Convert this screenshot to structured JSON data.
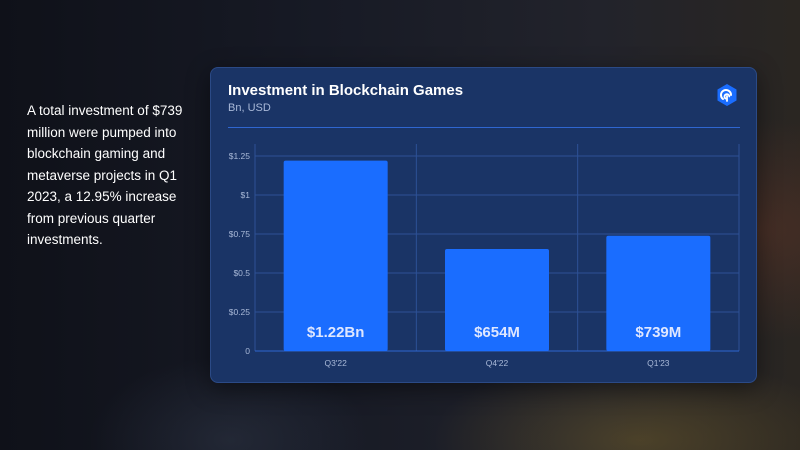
{
  "summary": {
    "text": "A total investment of $739 million were pumped into blockchain gaming and metaverse projects in Q1 2023, a 12.95% increase from previous quarter investments."
  },
  "card": {
    "title": "Investment in Blockchain Games",
    "subtitle": "Bn, USD",
    "logo_icon": "brand-logo-icon"
  },
  "colors": {
    "bar": "#1a6dff",
    "card_bg": "#1a3466",
    "grid": "#2d5196",
    "axis": "#2f66d0",
    "tick_label": "#a9b9d8",
    "data_label": "#dfe7ff"
  },
  "chart_data": {
    "type": "bar",
    "title": "Investment in Blockchain Games",
    "subtitle": "Bn, USD",
    "categories": [
      "Q3'22",
      "Q4'22",
      "Q1'23"
    ],
    "values": [
      1.22,
      0.654,
      0.739
    ],
    "data_labels": [
      "$1.22Bn",
      "$654M",
      "$739M"
    ],
    "yticks": [
      0,
      0.25,
      0.5,
      0.75,
      1,
      1.25
    ],
    "ytick_labels": [
      "0",
      "$0.25",
      "$0.5",
      "$0.75",
      "$1",
      "$1.25"
    ],
    "ylim": [
      0,
      1.25
    ],
    "grid": true,
    "legend": "none"
  }
}
